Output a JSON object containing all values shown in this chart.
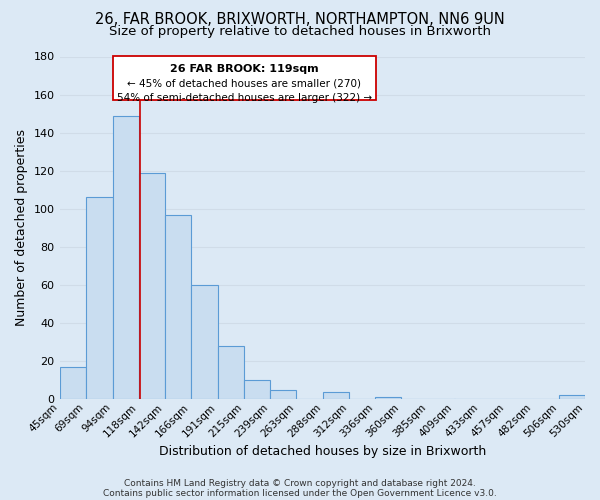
{
  "title1": "26, FAR BROOK, BRIXWORTH, NORTHAMPTON, NN6 9UN",
  "title2": "Size of property relative to detached houses in Brixworth",
  "xlabel": "Distribution of detached houses by size in Brixworth",
  "ylabel": "Number of detached properties",
  "bar_left_edges": [
    45,
    69,
    94,
    118,
    142,
    166,
    191,
    215,
    239,
    263,
    288,
    312,
    336,
    360,
    385,
    409,
    433,
    457,
    482,
    506
  ],
  "bar_heights": [
    17,
    106,
    149,
    119,
    97,
    60,
    28,
    10,
    5,
    0,
    4,
    0,
    1,
    0,
    0,
    0,
    0,
    0,
    0,
    2
  ],
  "bar_widths": [
    24,
    25,
    24,
    24,
    24,
    25,
    24,
    24,
    24,
    25,
    24,
    24,
    24,
    25,
    25,
    24,
    24,
    25,
    24,
    24
  ],
  "bar_color": "#c9ddf0",
  "bar_edgecolor": "#5b9bd5",
  "tick_labels": [
    "45sqm",
    "69sqm",
    "94sqm",
    "118sqm",
    "142sqm",
    "166sqm",
    "191sqm",
    "215sqm",
    "239sqm",
    "263sqm",
    "288sqm",
    "312sqm",
    "336sqm",
    "360sqm",
    "385sqm",
    "409sqm",
    "433sqm",
    "457sqm",
    "482sqm",
    "506sqm",
    "530sqm"
  ],
  "vline_x": 119,
  "vline_color": "#cc0000",
  "annotation_text1": "26 FAR BROOK: 119sqm",
  "annotation_text2": "← 45% of detached houses are smaller (270)",
  "annotation_text3": "54% of semi-detached houses are larger (322) →",
  "ylim": [
    0,
    180
  ],
  "yticks": [
    0,
    20,
    40,
    60,
    80,
    100,
    120,
    140,
    160,
    180
  ],
  "grid_color": "#d0dce8",
  "background_color": "#dce9f5",
  "footer1": "Contains HM Land Registry data © Crown copyright and database right 2024.",
  "footer2": "Contains public sector information licensed under the Open Government Licence v3.0.",
  "title_fontsize": 10.5,
  "subtitle_fontsize": 9.5,
  "axis_label_fontsize": 9,
  "tick_fontsize": 7.5,
  "footer_fontsize": 6.5
}
